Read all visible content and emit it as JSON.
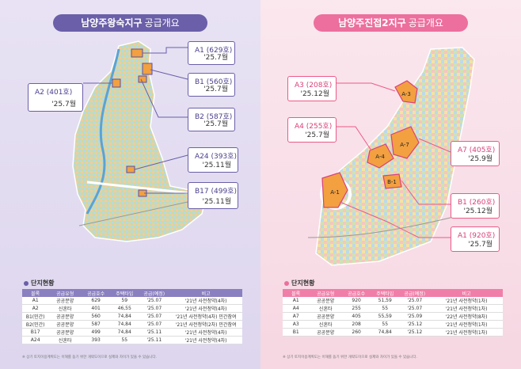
{
  "left": {
    "title_bold": "남양주왕숙지구",
    "title_light": "공급개요",
    "callouts": [
      {
        "name": "A1 (629호)",
        "date": "'25.7월"
      },
      {
        "name": "A2 (401호)",
        "date": "'25.7월"
      },
      {
        "name": "B1 (560호)",
        "date": "'25.7월"
      },
      {
        "name": "B2 (587호)",
        "date": "'25.7월"
      },
      {
        "name": "A24 (393호)",
        "date": "'25.11월"
      },
      {
        "name": "B17 (499호)",
        "date": "'25.11월"
      }
    ],
    "status_title": "단지현황",
    "headers": [
      "블록",
      "공급유형",
      "공급호수",
      "주택타입",
      "공급(예정)",
      "비고"
    ],
    "rows": [
      [
        "A1",
        "공공분양",
        "629",
        "59",
        "'25.07",
        "'21년 사전청약(4차)"
      ],
      [
        "A2",
        "신혼타",
        "401",
        "46,55",
        "'25.07",
        "'21년 사전청약(4차)"
      ],
      [
        "B1(민간)",
        "공공분양",
        "560",
        "74,84",
        "'25.07",
        "'21년 사전청약(4차) 민간참여"
      ],
      [
        "B2(민간)",
        "공공분양",
        "587",
        "74,84",
        "'25.07",
        "'21년 사전청약(2차) 민간참여"
      ],
      [
        "B17",
        "공공분양",
        "499",
        "74,84",
        "'25.11",
        "'21년 사전청약(4차)"
      ],
      [
        "A24",
        "신혼타",
        "393",
        "55",
        "'25.11",
        "'21년 사전청약(4차)"
      ]
    ],
    "footnote": "※ 상기 토지이용계획도는 이해를 돕기 위한 개략도이므로 실제와 차이가 있을 수 있습니다."
  },
  "right": {
    "title_bold": "남양주진접2지구",
    "title_light": "공급개요",
    "callouts": [
      {
        "name": "A3 (208호)",
        "date": "'25.12월"
      },
      {
        "name": "A4 (255호)",
        "date": "'25.7월"
      },
      {
        "name": "A7 (405호)",
        "date": "'25.9월"
      },
      {
        "name": "B1 (260호)",
        "date": "'25.12월"
      },
      {
        "name": "A1 (920호)",
        "date": "'25.7월"
      }
    ],
    "map_labels": [
      "A-3",
      "A-7",
      "A-4",
      "A-1",
      "B-1"
    ],
    "status_title": "단지현황",
    "headers": [
      "블록",
      "공급유형",
      "공급호수",
      "주택타입",
      "공급(예정)",
      "비고"
    ],
    "rows": [
      [
        "A1",
        "공공분양",
        "920",
        "51,59",
        "'25.07",
        "'21년 사전청약(1차)"
      ],
      [
        "A4",
        "신혼타",
        "255",
        "55",
        "'25.07",
        "'21년 사전청약(1차)"
      ],
      [
        "A7",
        "공공분양",
        "405",
        "55,59",
        "'25.09",
        "'22년 사전청약(8차)"
      ],
      [
        "A3",
        "신혼타",
        "208",
        "55",
        "'25.12",
        "'21년 사전청약(1차)"
      ],
      [
        "B1",
        "공공분양",
        "260",
        "74,84",
        "'25.12",
        "'21년 사전청약(1차)"
      ]
    ],
    "footnote": "※ 상기 토지이용계획도는 이해를 돕기 위한 개략도이므로 실제와 차이가 있을 수 있습니다."
  }
}
